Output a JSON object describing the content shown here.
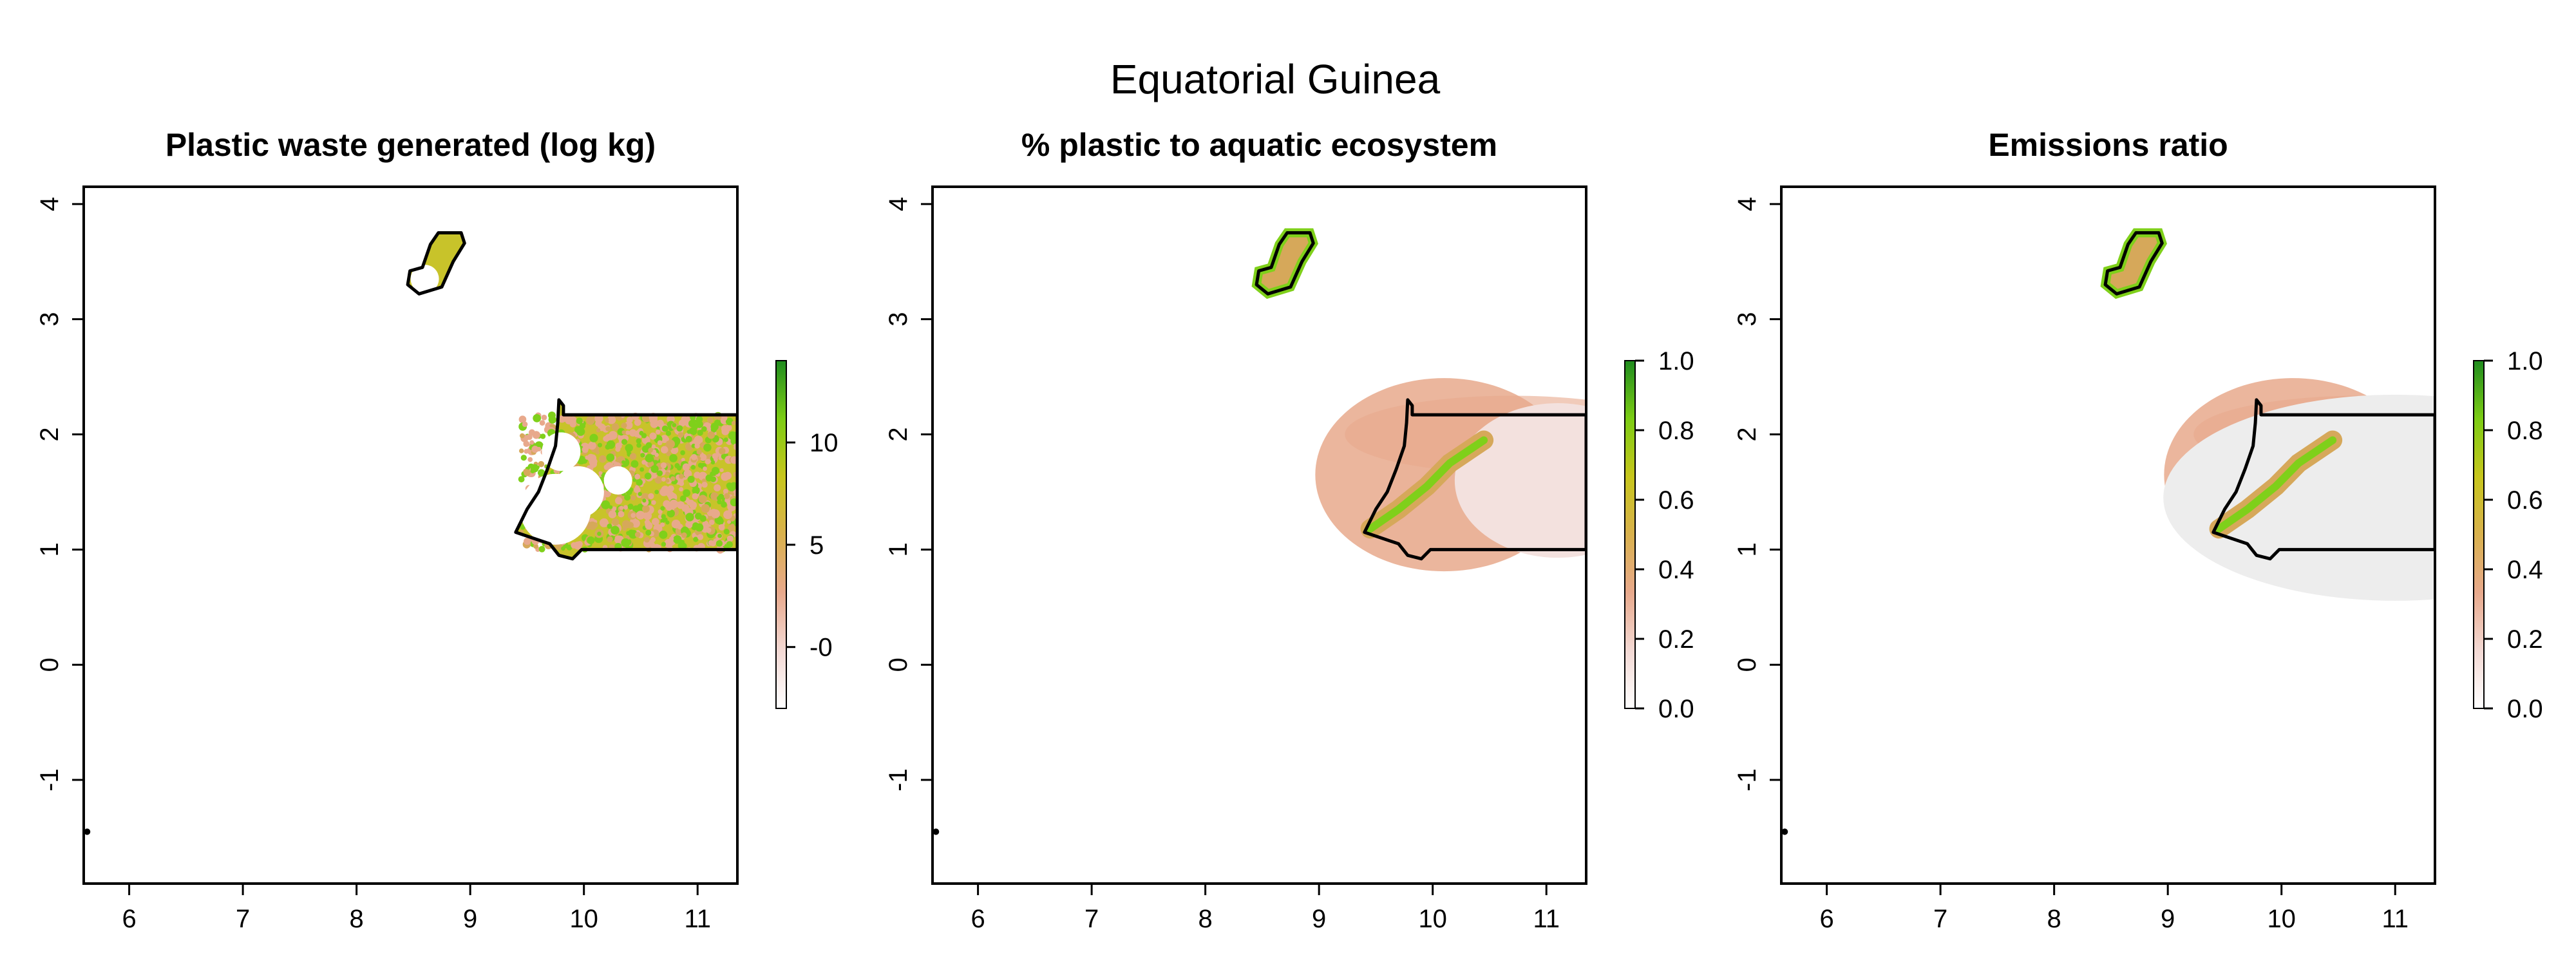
{
  "figure": {
    "title": "Equatorial Guinea"
  },
  "panels": [
    {
      "title": "Plastic waste generated (log kg)",
      "legend_ticks": [
        "-0",
        "5",
        "10"
      ],
      "legend_tick_values": [
        0,
        5,
        10
      ],
      "legend_range": [
        -3,
        14
      ],
      "fill_style": "speckled-waste",
      "legend_colors": [
        "#ffffff",
        "#f3d9d4",
        "#e8a98c",
        "#d9b14d",
        "#c7c61c",
        "#7ccc14",
        "#1f8c1f"
      ]
    },
    {
      "title": "% plastic to aquatic ecosystem",
      "legend_ticks": [
        "0.0",
        "0.2",
        "0.4",
        "0.6",
        "0.8",
        "1.0"
      ],
      "legend_tick_values": [
        0,
        0.2,
        0.4,
        0.6,
        0.8,
        1.0
      ],
      "legend_range": [
        0,
        1
      ],
      "fill_style": "gradient-aquatic",
      "legend_colors": [
        "#ffffff",
        "#f3d9d4",
        "#e8a98c",
        "#d9b14d",
        "#c7c61c",
        "#7ccc14",
        "#1f8c1f"
      ]
    },
    {
      "title": "Emissions ratio",
      "legend_ticks": [
        "0.0",
        "0.2",
        "0.4",
        "0.6",
        "0.8",
        "1.0"
      ],
      "legend_tick_values": [
        0,
        0.2,
        0.4,
        0.6,
        0.8,
        1.0
      ],
      "legend_range": [
        0,
        1
      ],
      "fill_style": "gradient-emissions",
      "legend_colors": [
        "#ffffff",
        "#f3d9d4",
        "#e8a98c",
        "#d9b14d",
        "#c7c61c",
        "#7ccc14",
        "#1f8c1f"
      ]
    }
  ],
  "axes": {
    "x_ticks": [
      "6",
      "7",
      "8",
      "9",
      "10",
      "11"
    ],
    "x_tick_values": [
      6,
      7,
      8,
      9,
      10,
      11
    ],
    "y_ticks": [
      "-1",
      "0",
      "1",
      "2",
      "3",
      "4"
    ],
    "y_tick_values": [
      -1,
      0,
      1,
      2,
      3,
      4
    ],
    "x_range": [
      5.6,
      11.35
    ],
    "y_range": [
      -1.9,
      4.15
    ]
  },
  "colors": {
    "pale": "#f7e6e2",
    "salmon": "#e8a98c",
    "tan": "#d6a85a",
    "olive": "#c8c32a",
    "lime": "#7fd01a",
    "green": "#2e9a1c",
    "gray": "#ededed"
  }
}
